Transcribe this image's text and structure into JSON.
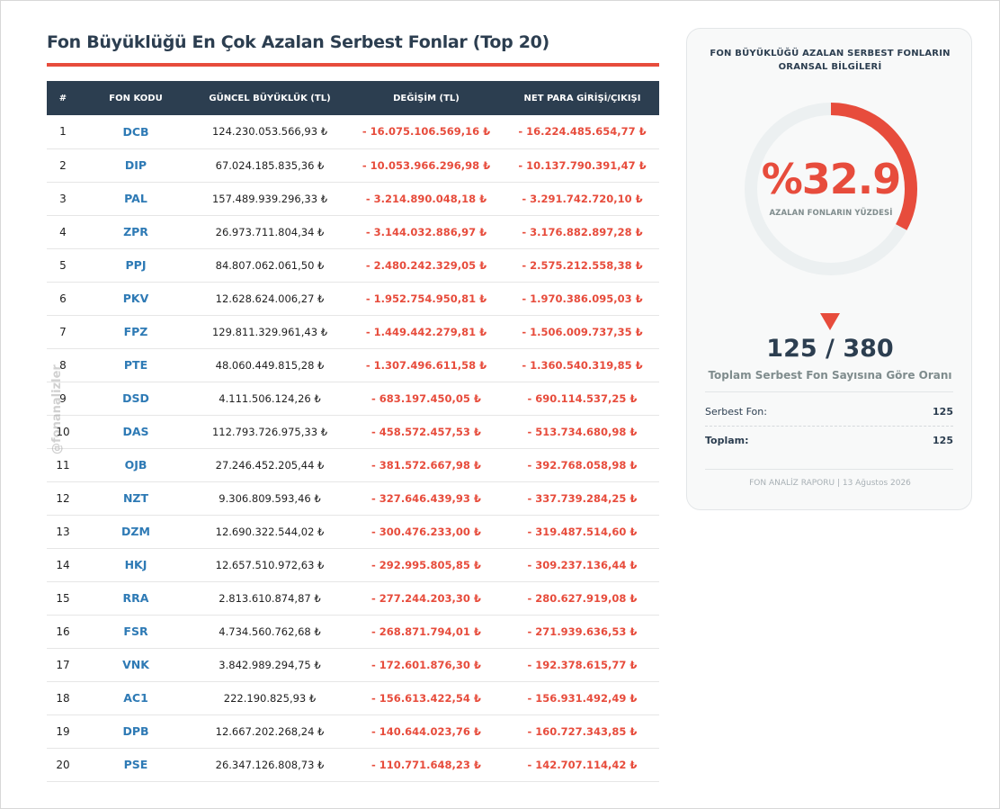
{
  "page": {
    "title": "Fon Büyüklüğü En Çok Azalan Serbest Fonlar (Top 20)",
    "watermark": "@fonanalizler"
  },
  "table": {
    "headers": [
      "#",
      "FON KODU",
      "GÜNCEL BÜYÜKLÜK (TL)",
      "DEĞİŞİM (TL)",
      "NET PARA GİRİŞİ/ÇIKIŞI"
    ],
    "rows": [
      {
        "idx": "1",
        "code": "DCB",
        "size": "124.230.053.566,93 ₺",
        "change": "- 16.075.106.569,16 ₺",
        "flow": "- 16.224.485.654,77 ₺"
      },
      {
        "idx": "2",
        "code": "DIP",
        "size": "67.024.185.835,36 ₺",
        "change": "- 10.053.966.296,98 ₺",
        "flow": "- 10.137.790.391,47 ₺"
      },
      {
        "idx": "3",
        "code": "PAL",
        "size": "157.489.939.296,33 ₺",
        "change": "- 3.214.890.048,18 ₺",
        "flow": "- 3.291.742.720,10 ₺"
      },
      {
        "idx": "4",
        "code": "ZPR",
        "size": "26.973.711.804,34 ₺",
        "change": "- 3.144.032.886,97 ₺",
        "flow": "- 3.176.882.897,28 ₺"
      },
      {
        "idx": "5",
        "code": "PPJ",
        "size": "84.807.062.061,50 ₺",
        "change": "- 2.480.242.329,05 ₺",
        "flow": "- 2.575.212.558,38 ₺"
      },
      {
        "idx": "6",
        "code": "PKV",
        "size": "12.628.624.006,27 ₺",
        "change": "- 1.952.754.950,81 ₺",
        "flow": "- 1.970.386.095,03 ₺"
      },
      {
        "idx": "7",
        "code": "FPZ",
        "size": "129.811.329.961,43 ₺",
        "change": "- 1.449.442.279,81 ₺",
        "flow": "- 1.506.009.737,35 ₺"
      },
      {
        "idx": "8",
        "code": "PTE",
        "size": "48.060.449.815,28 ₺",
        "change": "- 1.307.496.611,58 ₺",
        "flow": "- 1.360.540.319,85 ₺"
      },
      {
        "idx": "9",
        "code": "DSD",
        "size": "4.111.506.124,26 ₺",
        "change": "- 683.197.450,05 ₺",
        "flow": "- 690.114.537,25 ₺"
      },
      {
        "idx": "10",
        "code": "DAS",
        "size": "112.793.726.975,33 ₺",
        "change": "- 458.572.457,53 ₺",
        "flow": "- 513.734.680,98 ₺"
      },
      {
        "idx": "11",
        "code": "OJB",
        "size": "27.246.452.205,44 ₺",
        "change": "- 381.572.667,98 ₺",
        "flow": "- 392.768.058,98 ₺"
      },
      {
        "idx": "12",
        "code": "NZT",
        "size": "9.306.809.593,46 ₺",
        "change": "- 327.646.439,93 ₺",
        "flow": "- 337.739.284,25 ₺"
      },
      {
        "idx": "13",
        "code": "DZM",
        "size": "12.690.322.544,02 ₺",
        "change": "- 300.476.233,00 ₺",
        "flow": "- 319.487.514,60 ₺"
      },
      {
        "idx": "14",
        "code": "HKJ",
        "size": "12.657.510.972,63 ₺",
        "change": "- 292.995.805,85 ₺",
        "flow": "- 309.237.136,44 ₺"
      },
      {
        "idx": "15",
        "code": "RRA",
        "size": "2.813.610.874,87 ₺",
        "change": "- 277.244.203,30 ₺",
        "flow": "- 280.627.919,08 ₺"
      },
      {
        "idx": "16",
        "code": "FSR",
        "size": "4.734.560.762,68 ₺",
        "change": "- 268.871.794,01 ₺",
        "flow": "- 271.939.636,53 ₺"
      },
      {
        "idx": "17",
        "code": "VNK",
        "size": "3.842.989.294,75 ₺",
        "change": "- 172.601.876,30 ₺",
        "flow": "- 192.378.615,77 ₺"
      },
      {
        "idx": "18",
        "code": "AC1",
        "size": "222.190.825,93 ₺",
        "change": "- 156.613.422,54 ₺",
        "flow": "- 156.931.492,49 ₺"
      },
      {
        "idx": "19",
        "code": "DPB",
        "size": "12.667.202.268,24 ₺",
        "change": "- 140.644.023,76 ₺",
        "flow": "- 160.727.343,85 ₺"
      },
      {
        "idx": "20",
        "code": "PSE",
        "size": "26.347.126.808,73 ₺",
        "change": "- 110.771.648,23 ₺",
        "flow": "- 142.707.114,42 ₺"
      }
    ]
  },
  "card": {
    "title": "FON BÜYÜKLÜĞÜ AZALAN SERBEST FONLARIN ORANSAL BİLGİLERİ",
    "gauge_fraction": 0.329,
    "gauge_label": "%32.9",
    "gauge_sub": "AZALAN FONLARIN YÜZDESİ",
    "ratio": "125 / 380",
    "ratio_sub": "Toplam Serbest Fon Sayısına Göre Oranı",
    "serbest_label": "Serbest Fon:",
    "serbest_value": "125",
    "total_label": "Toplam:",
    "total_value": "125",
    "footer": "FON ANALİZ RAPORU | 13 Ağustos 2026"
  },
  "colors": {
    "accent": "#e74c3c",
    "header_bg": "#2c3e50",
    "code_blue": "#2e7ab5",
    "gauge_track": "#ecf0f1"
  }
}
